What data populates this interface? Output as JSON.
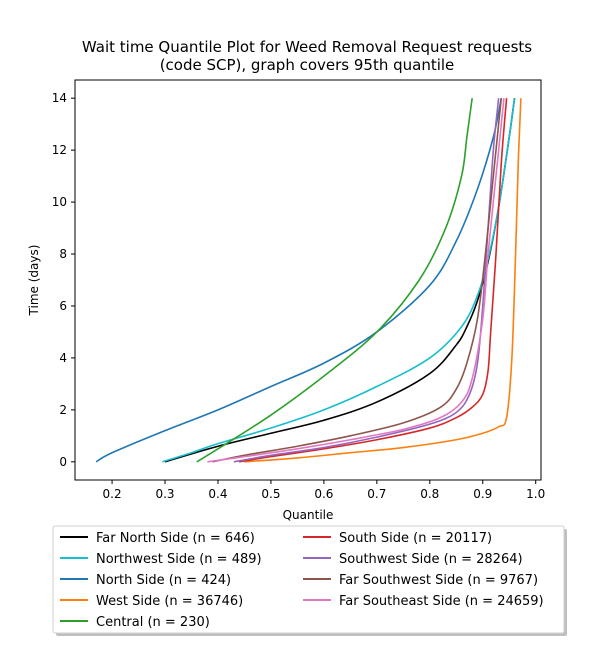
{
  "chart_data": {
    "type": "line",
    "title": [
      "Wait time Quantile Plot for Weed Removal Request  requests",
      "(code SCP), graph covers 95th quantile"
    ],
    "xlabel": "Quantile",
    "ylabel": "Time (days)",
    "xlim": [
      0.13,
      1.01
    ],
    "ylim": [
      -0.7,
      14.7
    ],
    "xticks": [
      0.2,
      0.3,
      0.4,
      0.5,
      0.6,
      0.7,
      0.8,
      0.9,
      1.0
    ],
    "xtick_labels": [
      "0.2",
      "0.3",
      "0.4",
      "0.5",
      "0.6",
      "0.7",
      "0.8",
      "0.9",
      "1.0"
    ],
    "yticks": [
      0,
      2,
      4,
      6,
      8,
      10,
      12,
      14
    ],
    "ytick_labels": [
      "0",
      "2",
      "4",
      "6",
      "8",
      "10",
      "12",
      "14"
    ],
    "grid": false,
    "legend_position": "below",
    "series": [
      {
        "name": "Far North Side (n = 646)",
        "color": "#000000",
        "points": [
          [
            0.3,
            0
          ],
          [
            0.4,
            0.6
          ],
          [
            0.5,
            1.1
          ],
          [
            0.6,
            1.6
          ],
          [
            0.7,
            2.3
          ],
          [
            0.8,
            3.4
          ],
          [
            0.85,
            4.5
          ],
          [
            0.87,
            5.2
          ],
          [
            0.89,
            6.2
          ],
          [
            0.91,
            7.7
          ],
          [
            0.93,
            9.8
          ],
          [
            0.95,
            12.5
          ],
          [
            0.96,
            14.0
          ]
        ]
      },
      {
        "name": "Northwest Side (n = 489)",
        "color": "#17becf",
        "points": [
          [
            0.295,
            0
          ],
          [
            0.35,
            0.35
          ],
          [
            0.4,
            0.7
          ],
          [
            0.5,
            1.3
          ],
          [
            0.6,
            2.0
          ],
          [
            0.7,
            2.9
          ],
          [
            0.8,
            4.0
          ],
          [
            0.86,
            5.2
          ],
          [
            0.89,
            6.4
          ],
          [
            0.91,
            7.8
          ],
          [
            0.93,
            9.8
          ],
          [
            0.95,
            12.5
          ],
          [
            0.96,
            14.0
          ]
        ]
      },
      {
        "name": "North Side (n = 424)",
        "color": "#1f77b4",
        "points": [
          [
            0.17,
            0
          ],
          [
            0.2,
            0.35
          ],
          [
            0.3,
            1.2
          ],
          [
            0.4,
            2.0
          ],
          [
            0.5,
            2.9
          ],
          [
            0.6,
            3.8
          ],
          [
            0.7,
            5.0
          ],
          [
            0.8,
            6.8
          ],
          [
            0.85,
            8.5
          ],
          [
            0.89,
            10.5
          ],
          [
            0.92,
            12.5
          ],
          [
            0.935,
            14.0
          ]
        ]
      },
      {
        "name": "West Side (n = 36746)",
        "color": "#ff7f0e",
        "points": [
          [
            0.45,
            0
          ],
          [
            0.55,
            0.15
          ],
          [
            0.65,
            0.35
          ],
          [
            0.75,
            0.55
          ],
          [
            0.85,
            0.85
          ],
          [
            0.9,
            1.1
          ],
          [
            0.93,
            1.35
          ],
          [
            0.945,
            1.7
          ],
          [
            0.955,
            4.0
          ],
          [
            0.962,
            8.0
          ],
          [
            0.967,
            11.5
          ],
          [
            0.972,
            14.0
          ]
        ]
      },
      {
        "name": "Central (n = 230)",
        "color": "#2ca02c",
        "points": [
          [
            0.36,
            0
          ],
          [
            0.4,
            0.5
          ],
          [
            0.5,
            1.8
          ],
          [
            0.6,
            3.3
          ],
          [
            0.7,
            5.0
          ],
          [
            0.78,
            7.0
          ],
          [
            0.83,
            9.0
          ],
          [
            0.86,
            11.0
          ],
          [
            0.87,
            12.5
          ],
          [
            0.88,
            14.0
          ]
        ]
      },
      {
        "name": "South Side (n = 20117)",
        "color": "#d62728",
        "points": [
          [
            0.44,
            0
          ],
          [
            0.5,
            0.2
          ],
          [
            0.6,
            0.5
          ],
          [
            0.7,
            0.85
          ],
          [
            0.8,
            1.3
          ],
          [
            0.85,
            1.7
          ],
          [
            0.88,
            2.1
          ],
          [
            0.9,
            2.6
          ],
          [
            0.91,
            3.5
          ],
          [
            0.915,
            5.0
          ],
          [
            0.925,
            8.0
          ],
          [
            0.935,
            11.5
          ],
          [
            0.945,
            14.0
          ]
        ]
      },
      {
        "name": "Southwest Side (n = 28264)",
        "color": "#9467bd",
        "points": [
          [
            0.43,
            0
          ],
          [
            0.5,
            0.25
          ],
          [
            0.6,
            0.55
          ],
          [
            0.7,
            0.95
          ],
          [
            0.8,
            1.45
          ],
          [
            0.85,
            1.9
          ],
          [
            0.875,
            2.6
          ],
          [
            0.89,
            3.8
          ],
          [
            0.9,
            6.0
          ],
          [
            0.91,
            9.0
          ],
          [
            0.92,
            12.0
          ],
          [
            0.93,
            14.0
          ]
        ]
      },
      {
        "name": "Far Southwest Side (n = 9767)",
        "color": "#8c564b",
        "points": [
          [
            0.39,
            0
          ],
          [
            0.45,
            0.25
          ],
          [
            0.55,
            0.6
          ],
          [
            0.65,
            1.0
          ],
          [
            0.75,
            1.5
          ],
          [
            0.82,
            2.1
          ],
          [
            0.85,
            2.8
          ],
          [
            0.87,
            3.8
          ],
          [
            0.89,
            5.5
          ],
          [
            0.905,
            8.0
          ],
          [
            0.92,
            11.0
          ],
          [
            0.935,
            14.0
          ]
        ]
      },
      {
        "name": "Far Southeast Side (n = 24659)",
        "color": "#e377c2",
        "points": [
          [
            0.38,
            0
          ],
          [
            0.45,
            0.2
          ],
          [
            0.55,
            0.5
          ],
          [
            0.65,
            0.85
          ],
          [
            0.75,
            1.25
          ],
          [
            0.82,
            1.7
          ],
          [
            0.86,
            2.3
          ],
          [
            0.88,
            3.2
          ],
          [
            0.9,
            5.5
          ],
          [
            0.91,
            8.0
          ],
          [
            0.925,
            11.0
          ],
          [
            0.94,
            14.0
          ]
        ]
      }
    ]
  }
}
